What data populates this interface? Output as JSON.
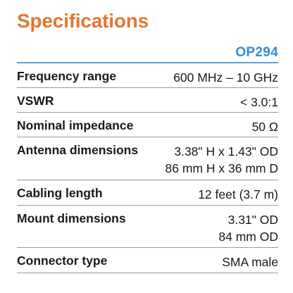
{
  "header": {
    "title": "Specifications",
    "title_color": "#e8762b",
    "model": "OP294",
    "model_color": "#2f8fd6",
    "rule_color": "#5ba4dc"
  },
  "specs": [
    {
      "label": "Frequency range",
      "values": [
        "600 MHz – 10 GHz"
      ]
    },
    {
      "label": "VSWR",
      "values": [
        "< 3.0:1"
      ]
    },
    {
      "label": "Nominal impedance",
      "values": [
        "50 Ω"
      ]
    },
    {
      "label": "Antenna dimensions",
      "values": [
        "3.38\" H x 1.43\" OD",
        "86 mm H x 36 mm D"
      ]
    },
    {
      "label": "Cabling length",
      "values": [
        "12 feet (3.7 m)"
      ]
    },
    {
      "label": "Mount dimensions",
      "values": [
        "3.31\" OD",
        "84 mm OD"
      ]
    },
    {
      "label": "Connector type",
      "values": [
        "SMA male"
      ]
    }
  ]
}
